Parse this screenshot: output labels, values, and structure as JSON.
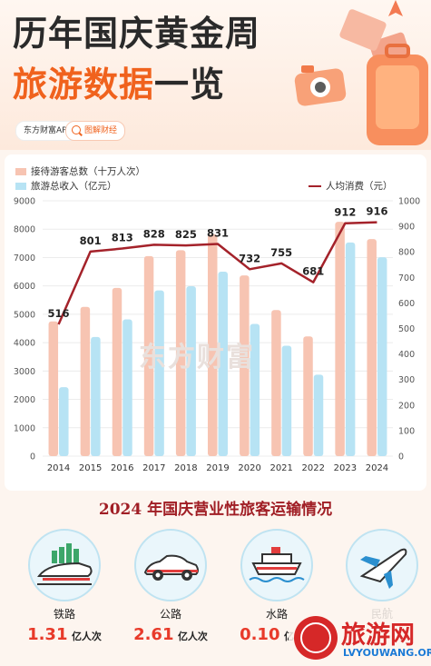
{
  "header": {
    "title_line1": "历年国庆黄金周",
    "title_highlight": "旅游数据",
    "title_rest": "一览",
    "source": "东方财富APP",
    "tag": "图解财经"
  },
  "legend": {
    "visitors": "接待游客总数（十万人次）",
    "revenue": "旅游总收入（亿元）",
    "per_capita": "人均消费（元）"
  },
  "watermark": "东方财富",
  "colors": {
    "visitors": "#f7c4b2",
    "revenue": "#b7e3f4",
    "line": "#a4222a",
    "accent": "#f0621d"
  },
  "chart_data": {
    "type": "bar",
    "categories": [
      "2014",
      "2015",
      "2016",
      "2017",
      "2018",
      "2019",
      "2020",
      "2021",
      "2022",
      "2023",
      "2024"
    ],
    "series": [
      {
        "name": "接待游客总数（十万人次）",
        "axis": "left",
        "values": [
          4750,
          5260,
          5930,
          7050,
          7260,
          7820,
          6370,
          5150,
          4220,
          8260,
          7650
        ]
      },
      {
        "name": "旅游总收入（亿元）",
        "axis": "left",
        "values": [
          2430,
          4200,
          4820,
          5840,
          5990,
          6500,
          4660,
          3890,
          2870,
          7530,
          7010
        ]
      },
      {
        "name": "人均消费（元）",
        "type": "line",
        "axis": "right",
        "values": [
          516,
          801,
          813,
          828,
          825,
          831,
          732,
          755,
          681,
          912,
          916
        ]
      }
    ],
    "ylim_left": [
      0,
      9000
    ],
    "yticks_left": [
      "0",
      "1000",
      "2000",
      "3000",
      "4000",
      "5000",
      "6000",
      "7000",
      "8000",
      "9000"
    ],
    "ylim_right": [
      0,
      1000
    ],
    "yticks_right": [
      "0",
      "100",
      "200",
      "300",
      "400",
      "500",
      "600",
      "700",
      "800",
      "900",
      "1000"
    ],
    "line_labels": [
      "516",
      "801",
      "813",
      "828",
      "825",
      "831",
      "732",
      "755",
      "681",
      "912",
      "916"
    ]
  },
  "transport": {
    "title": "2024 年国庆营业性旅客运输情况",
    "modes": [
      {
        "name": "铁路",
        "value": "1.31",
        "unit": "亿人次",
        "icon": "train-icon"
      },
      {
        "name": "公路",
        "value": "2.61",
        "unit": "亿人次",
        "icon": "car-icon"
      },
      {
        "name": "水路",
        "value": "0.10",
        "unit": "亿人次",
        "icon": "ship-icon"
      },
      {
        "name": "民航",
        "value": "",
        "unit": "",
        "icon": "plane-icon"
      }
    ]
  },
  "brand": {
    "name": "旅游网",
    "url": "LVYOUWANG.ORG"
  }
}
